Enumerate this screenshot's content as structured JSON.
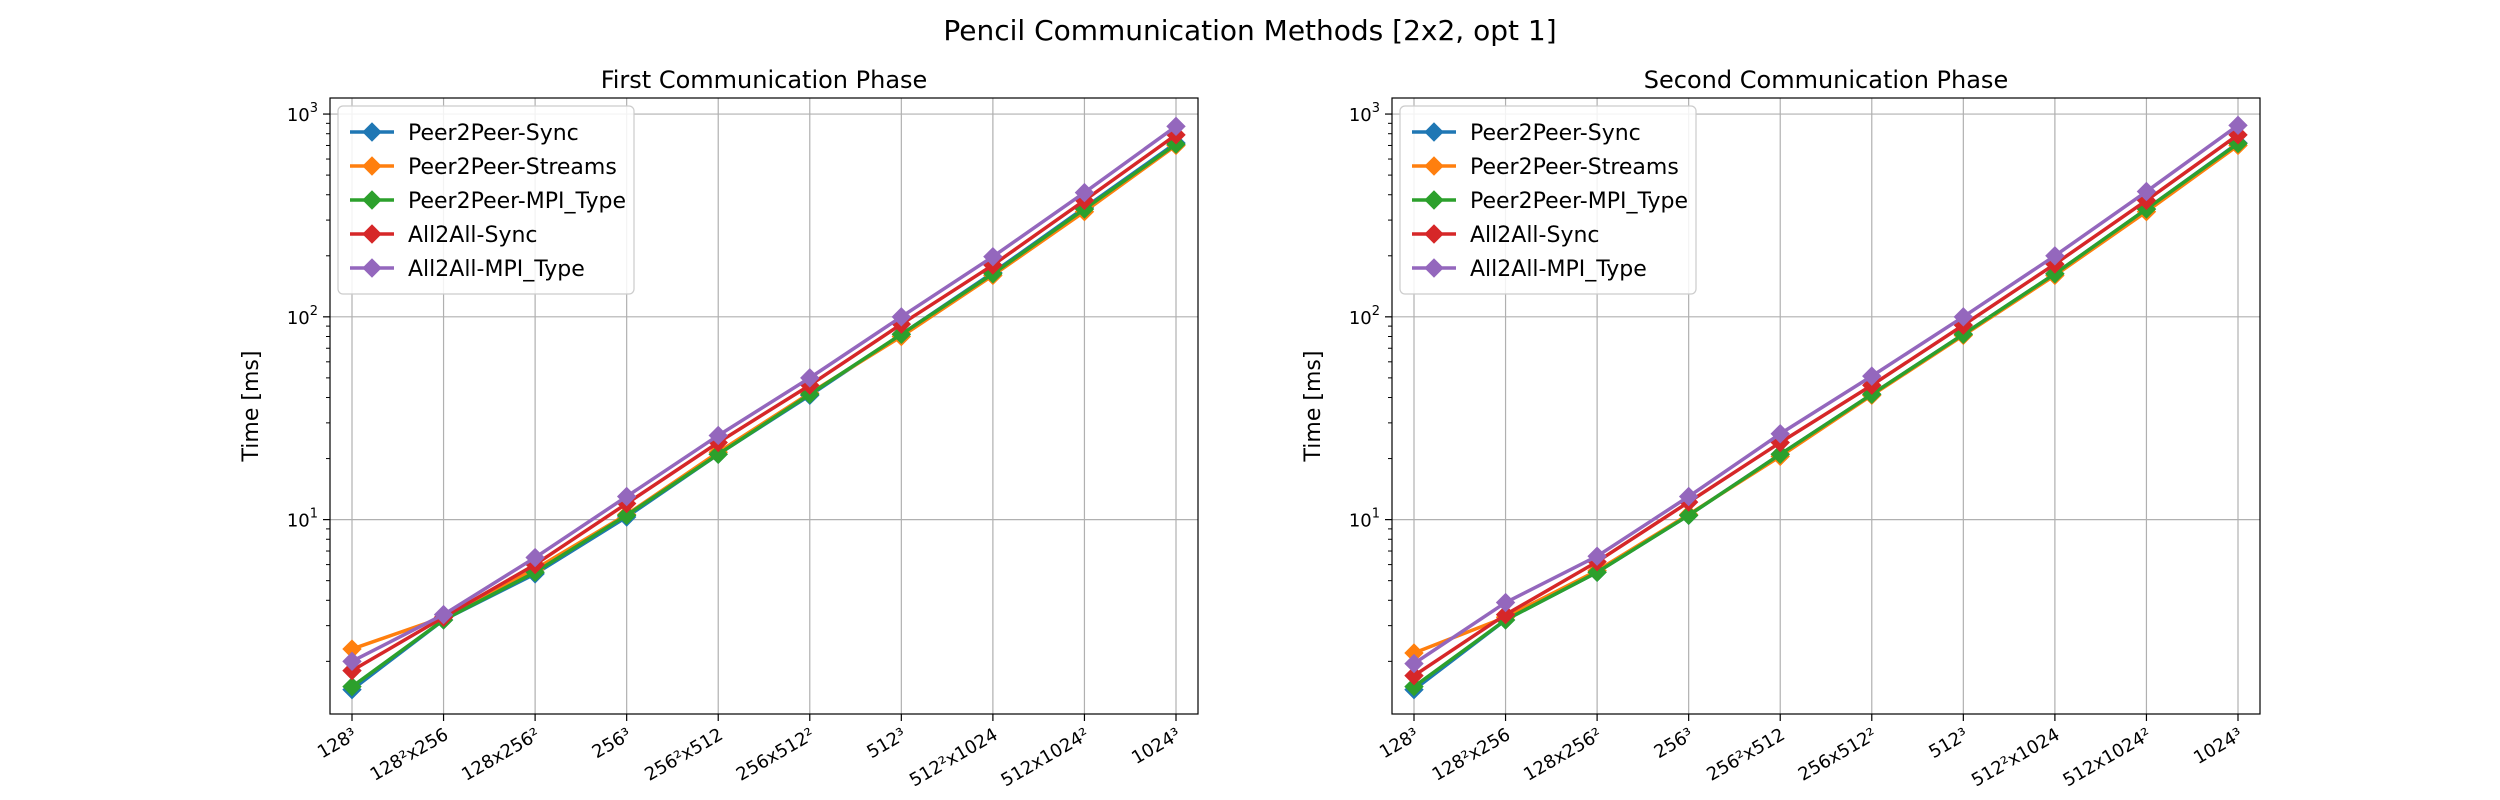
{
  "figure": {
    "title": "Pencil Communication Methods [2x2, opt 1]"
  },
  "series_styles": [
    {
      "name": "Peer2Peer-Sync",
      "color": "#1f77b4",
      "marker": "diamond-icon"
    },
    {
      "name": "Peer2Peer-Streams",
      "color": "#ff7f0e",
      "marker": "diamond-icon"
    },
    {
      "name": "Peer2Peer-MPI_Type",
      "color": "#2ca02c",
      "marker": "diamond-icon"
    },
    {
      "name": "All2All-Sync",
      "color": "#d62728",
      "marker": "diamond-icon"
    },
    {
      "name": "All2All-MPI_Type",
      "color": "#9467bd",
      "marker": "diamond-icon"
    }
  ],
  "chart_data": [
    {
      "type": "line",
      "title": "First Communication Phase",
      "xlabel": "",
      "ylabel": "Time [ms]",
      "yscale": "log",
      "ylim": [
        1.1,
        1200
      ],
      "grid": true,
      "legend": "top-left",
      "categories": [
        "128³",
        "128²x256",
        "128x256²",
        "256³",
        "256²x512",
        "256x512²",
        "512³",
        "512²x1024",
        "512x1024²",
        "1024³"
      ],
      "series": [
        {
          "name": "Peer2Peer-Sync",
          "values": [
            1.45,
            3.2,
            5.4,
            10.3,
            21,
            41,
            82,
            165,
            345,
            720
          ]
        },
        {
          "name": "Peer2Peer-Streams",
          "values": [
            2.3,
            3.3,
            5.7,
            10.6,
            21.5,
            42,
            80,
            160,
            330,
            700
          ]
        },
        {
          "name": "Peer2Peer-MPI_Type",
          "values": [
            1.5,
            3.2,
            5.5,
            10.5,
            21,
            41.5,
            82,
            163,
            340,
            710
          ]
        },
        {
          "name": "All2All-Sync",
          "values": [
            1.8,
            3.3,
            6.0,
            12.0,
            24,
            46,
            92,
            180,
            375,
            790
          ]
        },
        {
          "name": "All2All-MPI_Type",
          "values": [
            2.0,
            3.4,
            6.5,
            13.0,
            26,
            50,
            100,
            198,
            410,
            870
          ]
        }
      ]
    },
    {
      "type": "line",
      "title": "Second Communication Phase",
      "xlabel": "",
      "ylabel": "Time [ms]",
      "yscale": "log",
      "ylim": [
        1.1,
        1200
      ],
      "grid": true,
      "legend": "top-left",
      "categories": [
        "128³",
        "128²x256",
        "128x256²",
        "256³",
        "256²x512",
        "256x512²",
        "512³",
        "512²x1024",
        "512x1024²",
        "1024³"
      ],
      "series": [
        {
          "name": "Peer2Peer-Sync",
          "values": [
            1.45,
            3.2,
            5.5,
            10.5,
            21,
            41.5,
            82,
            163,
            340,
            720
          ]
        },
        {
          "name": "Peer2Peer-Streams",
          "values": [
            2.2,
            3.3,
            5.6,
            10.6,
            20.5,
            41,
            81,
            160,
            330,
            700
          ]
        },
        {
          "name": "Peer2Peer-MPI_Type",
          "values": [
            1.5,
            3.2,
            5.5,
            10.5,
            21,
            41.5,
            82,
            163,
            340,
            715
          ]
        },
        {
          "name": "All2All-Sync",
          "values": [
            1.7,
            3.4,
            6.2,
            12.2,
            24,
            46,
            91,
            182,
            375,
            790
          ]
        },
        {
          "name": "All2All-MPI_Type",
          "values": [
            1.95,
            3.9,
            6.6,
            13.0,
            26.5,
            51,
            100,
            200,
            415,
            880
          ]
        }
      ]
    }
  ]
}
